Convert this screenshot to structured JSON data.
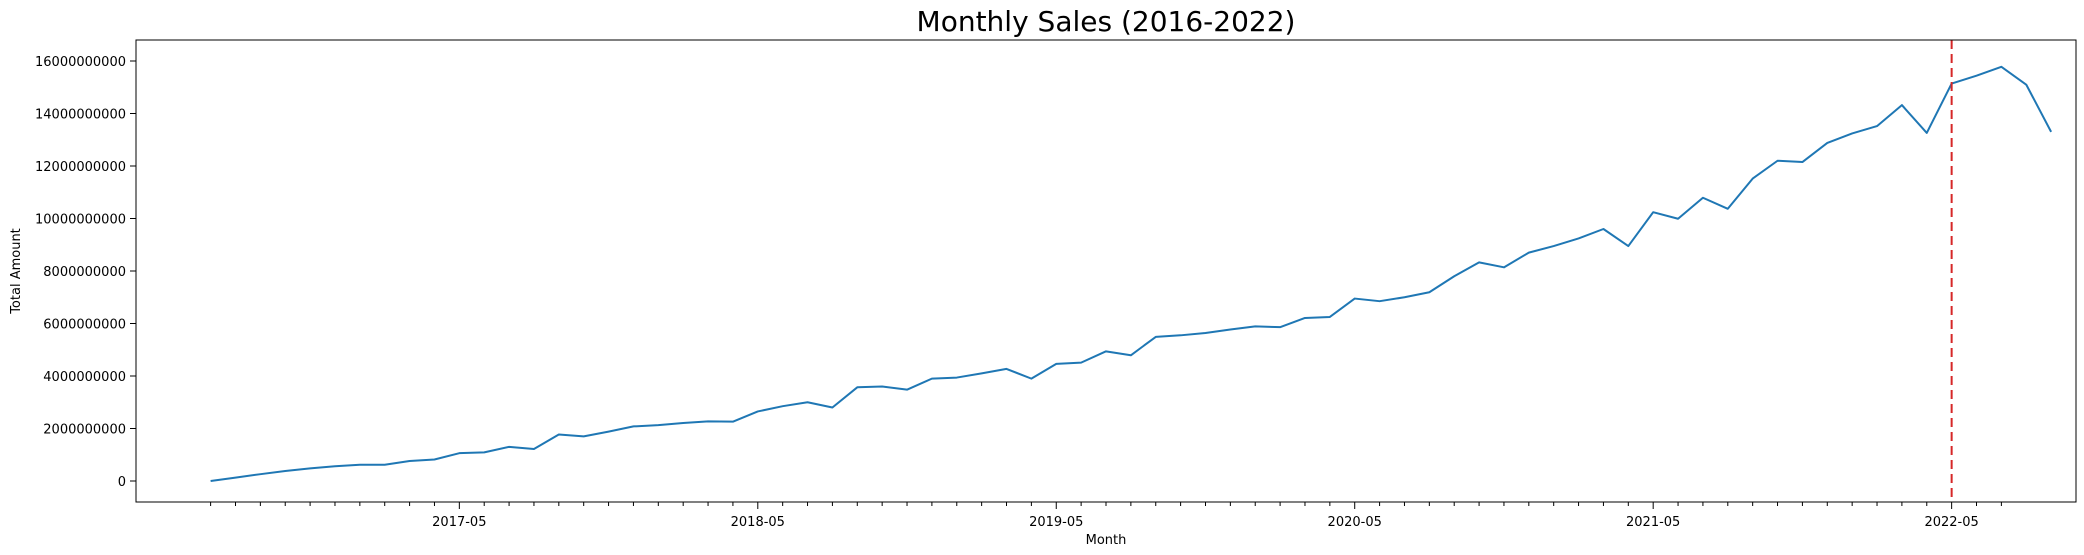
{
  "chart_data": {
    "type": "line",
    "title": "Monthly Sales (2016-2022)",
    "xlabel": "Month",
    "ylabel": "Total Amount",
    "x_start": "2016-07",
    "x_end": "2022-07",
    "x_range": [
      "2016-04",
      "2022-10"
    ],
    "x_ticks": [
      "2017-05",
      "2018-05",
      "2019-05",
      "2020-05",
      "2021-05",
      "2022-05"
    ],
    "ylim": [
      -800000000,
      16800000000
    ],
    "y_ticks": [
      0,
      2000000000,
      4000000000,
      6000000000,
      8000000000,
      10000000000,
      12000000000,
      14000000000,
      16000000000
    ],
    "y_tick_labels": [
      "0",
      "2000000000",
      "4000000000",
      "6000000000",
      "8000000000",
      "10000000000",
      "12000000000",
      "14000000000",
      "16000000000"
    ],
    "grid": false,
    "series": [
      {
        "color": "#1f77b4",
        "values": [
          0,
          130000000,
          260000000,
          380000000,
          480000000,
          560000000,
          620000000,
          620000000,
          760000000,
          820000000,
          1060000000,
          1090000000,
          1300000000,
          1220000000,
          1770000000,
          1700000000,
          1880000000,
          2080000000,
          2130000000,
          2210000000,
          2270000000,
          2260000000,
          2650000000,
          2850000000,
          3000000000,
          2800000000,
          3570000000,
          3600000000,
          3480000000,
          3900000000,
          3940000000,
          4100000000,
          4270000000,
          3900000000,
          4460000000,
          4510000000,
          4940000000,
          4790000000,
          5490000000,
          5550000000,
          5640000000,
          5770000000,
          5890000000,
          5860000000,
          6210000000,
          6250000000,
          6950000000,
          6850000000,
          7000000000,
          7190000000,
          7800000000,
          8330000000,
          8140000000,
          8700000000,
          8950000000,
          9240000000,
          9600000000,
          8950000000,
          10240000000,
          9990000000,
          10790000000,
          10370000000,
          11520000000,
          12200000000,
          12150000000,
          12880000000,
          13240000000,
          13520000000,
          14320000000,
          13260000000,
          15140000000,
          15440000000,
          15780000000,
          15100000000,
          13300000000
        ]
      }
    ],
    "vline": {
      "x": "2022-05",
      "color": "#d62728",
      "style": "dashed"
    }
  }
}
